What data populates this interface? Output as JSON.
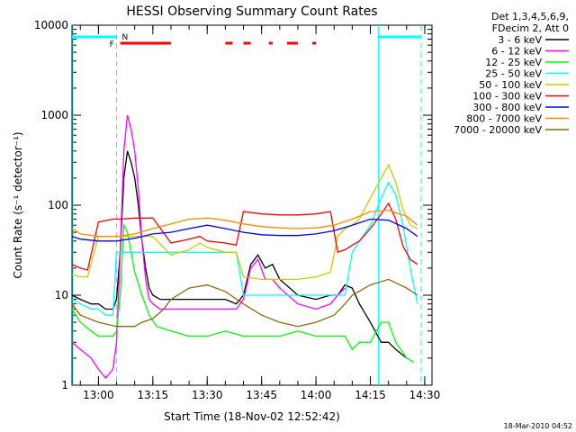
{
  "chart_data": {
    "type": "line",
    "title": "HESSI Observing Summary Count Rates",
    "xlabel": "Start Time (18-Nov-02 12:52:42)",
    "ylabel": "Count Rate (s⁻¹ detector⁻¹)",
    "y_scale": "log",
    "ylim": [
      1,
      10000
    ],
    "xlim": [
      "12:52:42",
      "14:32:00"
    ],
    "x_ticks": [
      "13:00",
      "13:15",
      "13:30",
      "13:45",
      "14:00",
      "14:15",
      "14:30"
    ],
    "y_ticks": [
      "1",
      "10",
      "100",
      "1000",
      "10000"
    ],
    "legend_position": "top-right",
    "legend_header": [
      "Det 1,3,4,5,6,9,",
      "FDecim 2, Att 0"
    ],
    "timestamp": "18-Mar-2010 04:52",
    "markers": {
      "f_label": "F",
      "n_label": "N",
      "night_intervals": [
        [
          "12:52:42",
          "13:05:00"
        ],
        [
          "14:17:00",
          "14:29:00"
        ]
      ],
      "flare_intervals": [
        [
          "13:06",
          "13:20"
        ],
        [
          "13:35",
          "13:37"
        ],
        [
          "13:40",
          "13:42"
        ],
        [
          "13:47",
          "13:48"
        ],
        [
          "13:52",
          "13:55"
        ],
        [
          "13:59",
          "14:00"
        ]
      ],
      "night_color": "#00ffff",
      "flare_color": "#ff0000"
    },
    "series": [
      {
        "name": "3 - 6 keV",
        "color": "#000000",
        "x": [
          "12:52:42",
          "12:55",
          "12:58",
          "13:00",
          "13:02",
          "13:04",
          "13:05",
          "13:06",
          "13:07",
          "13:08",
          "13:09",
          "13:10",
          "13:11",
          "13:12",
          "13:13",
          "13:14",
          "13:15",
          "13:17",
          "13:20",
          "13:25",
          "13:30",
          "13:35",
          "13:38",
          "13:40",
          "13:42",
          "13:44",
          "13:46",
          "13:48",
          "13:50",
          "13:55",
          "14:00",
          "14:04",
          "14:06",
          "14:08",
          "14:10",
          "14:12",
          "14:15",
          "14:18",
          "14:20",
          "14:22",
          "14:25"
        ],
        "y": [
          10,
          9,
          8,
          8,
          7,
          7,
          9,
          30,
          200,
          400,
          300,
          200,
          100,
          40,
          20,
          12,
          10,
          9,
          9,
          9,
          9,
          9,
          8,
          10,
          22,
          28,
          20,
          22,
          15,
          10,
          9,
          10,
          10,
          13,
          12,
          8,
          5,
          3,
          3,
          2.5,
          2
        ]
      },
      {
        "name": "6 - 12 keV",
        "color": "#ff00ff",
        "x": [
          "12:52:42",
          "12:55",
          "12:58",
          "13:00",
          "13:02",
          "13:04",
          "13:05",
          "13:06",
          "13:07",
          "13:08",
          "13:09",
          "13:10",
          "13:11",
          "13:12",
          "13:13",
          "13:14",
          "13:15",
          "13:17",
          "13:20",
          "13:25",
          "13:30",
          "13:35",
          "13:38",
          "13:40",
          "13:42",
          "13:44",
          "13:46",
          "13:48",
          "13:50",
          "13:55",
          "14:00",
          "14:04",
          "14:06",
          "14:08"
        ],
        "y": [
          3,
          2.5,
          2,
          1.5,
          1.2,
          1.5,
          3,
          30,
          400,
          1000,
          700,
          400,
          150,
          40,
          15,
          9,
          8,
          7,
          7,
          7,
          7,
          7,
          7,
          9,
          20,
          25,
          15,
          15,
          12,
          8,
          7,
          8,
          10,
          12
        ]
      },
      {
        "name": "12 - 25 keV",
        "color": "#00ff00",
        "x": [
          "12:52:42",
          "12:55",
          "12:58",
          "13:00",
          "13:02",
          "13:04",
          "13:05",
          "13:06",
          "13:07",
          "13:08",
          "13:09",
          "13:10",
          "13:12",
          "13:14",
          "13:16",
          "13:20",
          "13:25",
          "13:30",
          "13:35",
          "13:40",
          "13:45",
          "13:50",
          "13:55",
          "14:00",
          "14:05",
          "14:08",
          "14:10",
          "14:12",
          "14:15",
          "14:18",
          "14:20",
          "14:22",
          "14:25",
          "14:27"
        ],
        "y": [
          7,
          5,
          4,
          3.5,
          3.5,
          3.5,
          4,
          10,
          60,
          50,
          30,
          18,
          10,
          6,
          4.5,
          4,
          3.5,
          3.5,
          4,
          3.5,
          3.5,
          3.5,
          4,
          3.5,
          3.5,
          3.5,
          2.5,
          3,
          3,
          5,
          5,
          3,
          2,
          1.8
        ]
      },
      {
        "name": "25 - 50 keV",
        "color": "#00ffff",
        "x": [
          "12:52:42",
          "12:55",
          "12:58",
          "13:00",
          "13:02",
          "13:04",
          "13:05",
          "13:06",
          "13:08",
          "13:10",
          "13:12",
          "13:14",
          "13:16",
          "13:20",
          "13:25",
          "13:30",
          "13:35",
          "13:38",
          "13:40",
          "13:42",
          "13:45",
          "13:50",
          "13:55",
          "14:00",
          "14:04",
          "14:06",
          "14:08",
          "14:10",
          "14:12",
          "14:15",
          "14:18",
          "14:20",
          "14:22",
          "14:24",
          "14:26",
          "14:28"
        ],
        "y": [
          9,
          8,
          7,
          7,
          6,
          6,
          30,
          30,
          30,
          30,
          30,
          30,
          30,
          30,
          30,
          30,
          30,
          30,
          10,
          10,
          10,
          10,
          10,
          10,
          10,
          10,
          10,
          30,
          40,
          60,
          120,
          180,
          130,
          60,
          20,
          8
        ]
      },
      {
        "name": "50 - 100 keV",
        "color": "#cccc00",
        "x": [
          "12:52:42",
          "12:55",
          "12:57",
          "13:00",
          "13:04",
          "13:05",
          "13:06",
          "13:10",
          "13:15",
          "13:20",
          "13:25",
          "13:28",
          "13:30",
          "13:35",
          "13:38",
          "13:40",
          "13:45",
          "13:50",
          "13:55",
          "14:00",
          "14:04",
          "14:06",
          "14:08",
          "14:10",
          "14:12",
          "14:15",
          "14:18",
          "14:20",
          "14:22",
          "14:24",
          "14:26",
          "14:28"
        ],
        "y": [
          17,
          16,
          16,
          45,
          45,
          45,
          45,
          45,
          45,
          28,
          32,
          38,
          34,
          30,
          30,
          16,
          15,
          15,
          15,
          16,
          18,
          45,
          55,
          60,
          70,
          120,
          200,
          280,
          180,
          90,
          60,
          55
        ]
      },
      {
        "name": "100 - 300 keV",
        "color": "#ff0000",
        "x": [
          "12:52:42",
          "12:55",
          "12:57",
          "13:00",
          "13:04",
          "13:05",
          "13:06",
          "13:10",
          "13:15",
          "13:20",
          "13:25",
          "13:28",
          "13:30",
          "13:35",
          "13:38",
          "13:40",
          "13:45",
          "13:50",
          "13:55",
          "14:00",
          "14:04",
          "14:06",
          "14:08",
          "14:10",
          "14:12",
          "14:15",
          "14:18",
          "14:20",
          "14:22",
          "14:24",
          "14:26",
          "14:28"
        ],
        "y": [
          22,
          20,
          19,
          65,
          70,
          70,
          70,
          72,
          72,
          38,
          42,
          45,
          40,
          38,
          36,
          85,
          80,
          78,
          78,
          80,
          85,
          30,
          32,
          36,
          40,
          55,
          80,
          105,
          70,
          35,
          25,
          22
        ]
      },
      {
        "name": "300 - 800 keV",
        "color": "#0000ff",
        "x": [
          "12:52:42",
          "12:55",
          "13:00",
          "13:05",
          "13:10",
          "13:15",
          "13:20",
          "13:25",
          "13:30",
          "13:35",
          "13:40",
          "13:45",
          "13:50",
          "13:55",
          "14:00",
          "14:05",
          "14:10",
          "14:15",
          "14:20",
          "14:25",
          "14:28"
        ],
        "y": [
          45,
          42,
          40,
          40,
          43,
          48,
          50,
          55,
          60,
          55,
          50,
          47,
          46,
          46,
          48,
          52,
          60,
          70,
          68,
          55,
          45
        ]
      },
      {
        "name": "800 - 7000 keV",
        "color": "#ff8c00",
        "x": [
          "12:52:42",
          "12:55",
          "13:00",
          "13:05",
          "13:10",
          "13:15",
          "13:20",
          "13:25",
          "13:30",
          "13:35",
          "13:40",
          "13:45",
          "13:50",
          "13:55",
          "14:00",
          "14:05",
          "14:10",
          "14:15",
          "14:20",
          "14:25",
          "14:28"
        ],
        "y": [
          55,
          48,
          45,
          45,
          48,
          55,
          62,
          70,
          72,
          68,
          62,
          58,
          56,
          55,
          56,
          60,
          70,
          85,
          88,
          75,
          60
        ]
      },
      {
        "name": "7000 - 20000 keV",
        "color": "#8b6914",
        "x": [
          "12:52:42",
          "12:55",
          "13:00",
          "13:05",
          "13:10",
          "13:12",
          "13:15",
          "13:18",
          "13:20",
          "13:25",
          "13:30",
          "13:35",
          "13:40",
          "13:45",
          "13:50",
          "13:55",
          "14:00",
          "14:05",
          "14:08",
          "14:10",
          "14:15",
          "14:20",
          "14:25",
          "14:28"
        ],
        "y": [
          8,
          6,
          5,
          4.5,
          4.5,
          5,
          5.5,
          7,
          9,
          12,
          13,
          11,
          8,
          6,
          5,
          4.5,
          5,
          6,
          8,
          10,
          13,
          15,
          12,
          10
        ]
      }
    ]
  }
}
